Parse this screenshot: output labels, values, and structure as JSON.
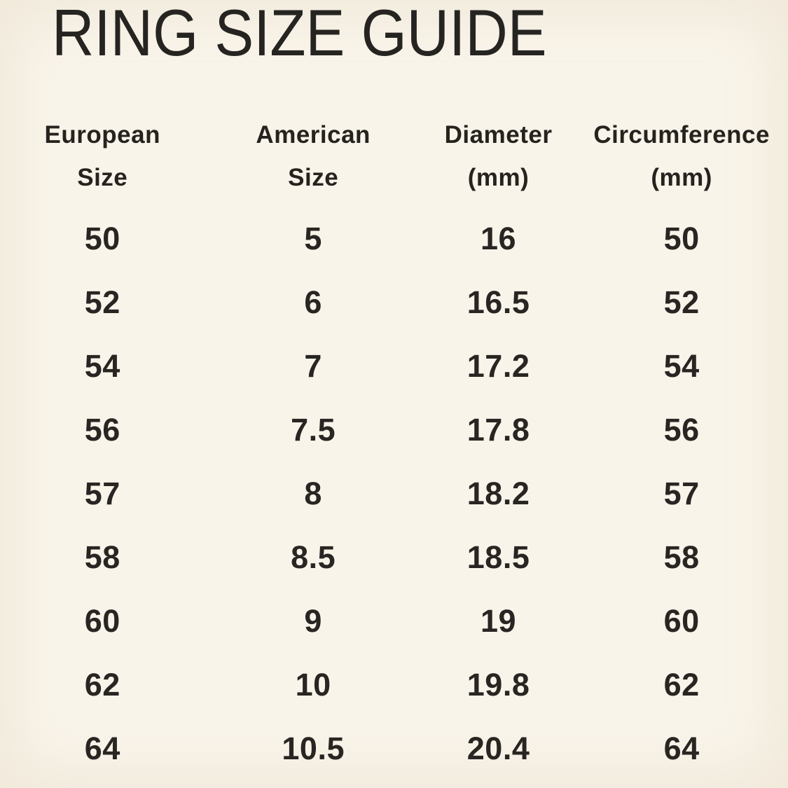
{
  "title": "RING SIZE GUIDE",
  "colors": {
    "background": "#f9f4ea",
    "edge_tint": "#eee4d3",
    "text": "#23211e"
  },
  "chart_data": {
    "type": "table",
    "title": "RING SIZE GUIDE",
    "columns": [
      "European Size",
      "American Size",
      "Diameter (mm)",
      "Circumference (mm)"
    ],
    "header_lines": [
      {
        "line1": "European",
        "line2": "Size"
      },
      {
        "line1": "American",
        "line2": "Size"
      },
      {
        "line1": "Diameter",
        "line2": "(mm)"
      },
      {
        "line1": "Circumference",
        "line2": "(mm)"
      }
    ],
    "rows": [
      [
        "50",
        "5",
        "16",
        "50"
      ],
      [
        "52",
        "6",
        "16.5",
        "52"
      ],
      [
        "54",
        "7",
        "17.2",
        "54"
      ],
      [
        "56",
        "7.5",
        "17.8",
        "56"
      ],
      [
        "57",
        "8",
        "18.2",
        "57"
      ],
      [
        "58",
        "8.5",
        "18.5",
        "58"
      ],
      [
        "60",
        "9",
        "19",
        "60"
      ],
      [
        "62",
        "10",
        "19.8",
        "62"
      ],
      [
        "64",
        "10.5",
        "20.4",
        "64"
      ]
    ]
  }
}
